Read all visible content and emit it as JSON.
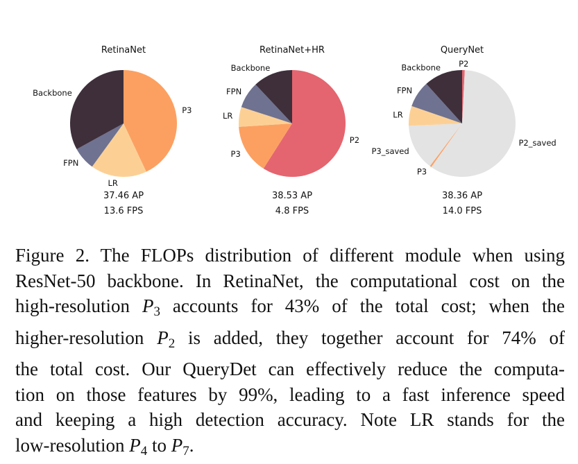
{
  "chart_data": [
    {
      "type": "pie",
      "title": "RetinaNet",
      "labels": [
        "P3",
        "LR",
        "FPN",
        "Backbone"
      ],
      "values": [
        43,
        17,
        7,
        33
      ],
      "colors": [
        "#fca061",
        "#fcd095",
        "#6f7290",
        "#3e2f3b"
      ],
      "metrics": [
        "37.46 AP",
        "13.6 FPS"
      ]
    },
    {
      "type": "pie",
      "title": "RetinaNet+HR",
      "labels": [
        "P2",
        "P3",
        "LR",
        "FPN",
        "Backbone"
      ],
      "values": [
        59,
        15,
        6,
        8,
        12
      ],
      "colors": [
        "#e4656f",
        "#fca061",
        "#fcd095",
        "#6f7290",
        "#3e2f3b"
      ],
      "metrics": [
        "38.53 AP",
        "4.8 FPS"
      ]
    },
    {
      "type": "pie",
      "title": "QueryNet",
      "labels": [
        "P2",
        "P2_saved",
        "P3",
        "P3_saved",
        "LR",
        "FPN",
        "Backbone"
      ],
      "values": [
        0.8,
        59,
        0.5,
        14,
        6,
        8,
        11.7
      ],
      "colors": [
        "#e4656f",
        "#e3e3e3",
        "#fca061",
        "#e3e3e3",
        "#fcd095",
        "#6f7290",
        "#3e2f3b"
      ],
      "metrics": [
        "38.36 AP",
        "14.0 FPS"
      ]
    }
  ],
  "caption": {
    "l1": "Figure 2. The FLOPs distribution of different module when using",
    "l2": "ResNet-50 backbone. In RetinaNet, the computational cost on the",
    "l3a": "high-resolution ",
    "l3m": "P",
    "l3s": "3",
    "l3b": " accounts for 43% of the total cost; when the",
    "l4a": "higher-resolution ",
    "l4m": "P",
    "l4s": "2",
    "l4b": " is added, they together account for 74% of",
    "l5": "the total cost. Our QueryDet can effectively reduce the computa-",
    "l6": "tion on those features by 99%, leading to a fast inference speed",
    "l7": "and keeping a high detection accuracy.  Note LR stands for the",
    "l8a": "low-resolution ",
    "l8m1": "P",
    "l8s1": "4",
    "l8b": " to ",
    "l8m2": "P",
    "l8s2": "7",
    "l8c": "."
  }
}
